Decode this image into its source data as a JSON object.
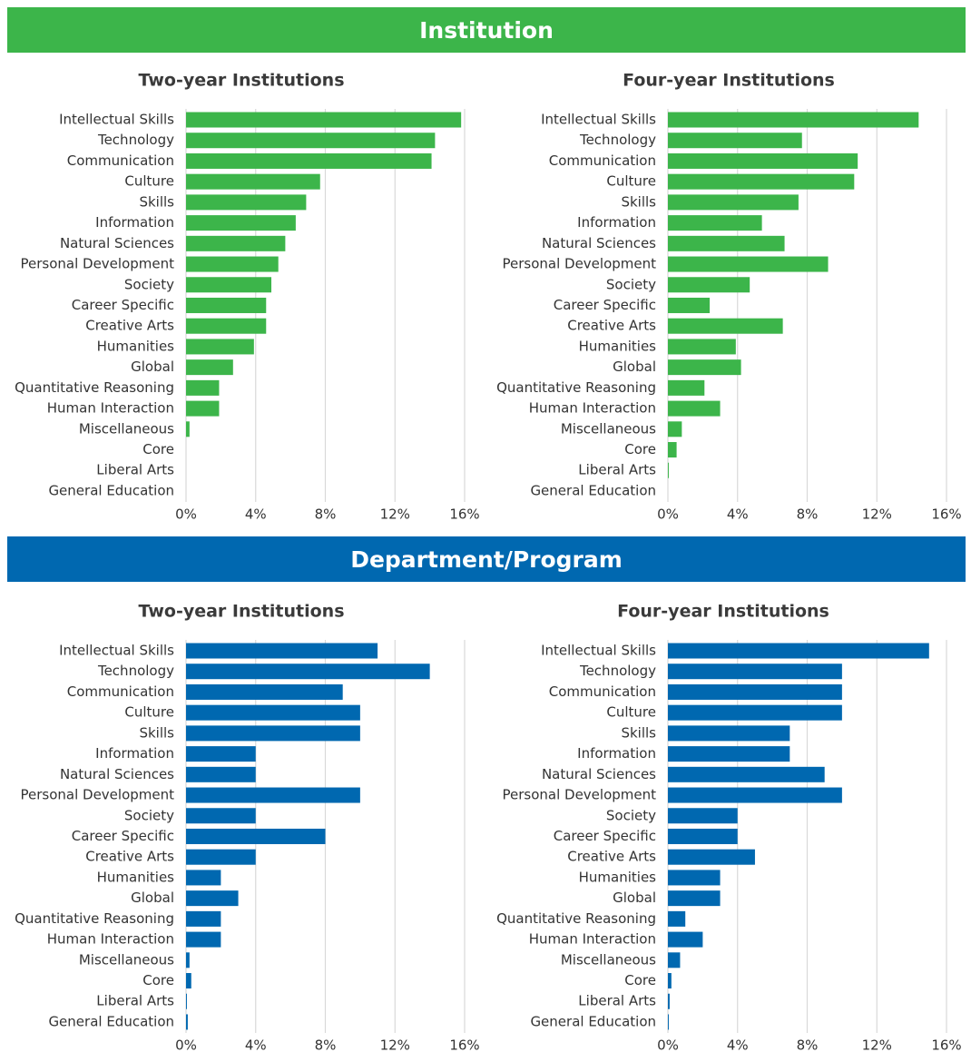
{
  "sections": [
    {
      "title": "Institution",
      "color": "#3cb54a"
    },
    {
      "title": "Department/Program",
      "color": "#0068b0"
    }
  ],
  "chart_data": [
    {
      "type": "bar",
      "orientation": "horizontal",
      "title": "Two-year Institutions",
      "color": "#3cb54a",
      "grid": true,
      "categories": [
        "Intellectual Skills",
        "Technology",
        "Communication",
        "Culture",
        "Skills",
        "Information",
        "Natural Sciences",
        "Personal Development",
        "Society",
        "Career Specific",
        "Creative Arts",
        "Humanities",
        "Global",
        "Quantitative Reasoning",
        "Human Interaction",
        "Miscellaneous",
        "Core",
        "Liberal Arts",
        "General Education"
      ],
      "values": [
        15.8,
        14.3,
        14.1,
        7.7,
        6.9,
        6.3,
        5.7,
        5.3,
        4.9,
        4.6,
        4.6,
        3.9,
        2.7,
        1.9,
        1.9,
        0.2,
        0,
        0,
        0
      ],
      "xlim": [
        0,
        16
      ],
      "xticks": [
        {
          "value": 0,
          "label": "0%"
        },
        {
          "value": 4,
          "label": "4%"
        },
        {
          "value": 8,
          "label": "8%"
        },
        {
          "value": 12,
          "label": "12%"
        },
        {
          "value": 16,
          "label": "16%"
        }
      ]
    },
    {
      "type": "bar",
      "orientation": "horizontal",
      "title": "Four-year Institutions",
      "color": "#3cb54a",
      "grid": true,
      "categories": [
        "Intellectual Skills",
        "Technology",
        "Communication",
        "Culture",
        "Skills",
        "Information",
        "Natural Sciences",
        "Personal Development",
        "Society",
        "Career Specific",
        "Creative Arts",
        "Humanities",
        "Global",
        "Quantitative Reasoning",
        "Human Interaction",
        "Miscellaneous",
        "Core",
        "Liberal Arts",
        "General Education"
      ],
      "values": [
        14.4,
        7.7,
        10.9,
        10.7,
        7.5,
        5.4,
        6.7,
        9.2,
        4.7,
        2.4,
        6.6,
        3.9,
        4.2,
        2.1,
        3.0,
        0.8,
        0.5,
        0.05,
        0
      ],
      "xlim": [
        0,
        16
      ],
      "xticks": [
        {
          "value": 0,
          "label": "0%"
        },
        {
          "value": 4,
          "label": "4%"
        },
        {
          "value": 8,
          "label": "8%"
        },
        {
          "value": 12,
          "label": "12%"
        },
        {
          "value": 16,
          "label": "16%"
        }
      ]
    },
    {
      "type": "bar",
      "orientation": "horizontal",
      "title": "Two-year Institutions",
      "color": "#0068b0",
      "grid": true,
      "categories": [
        "Intellectual Skills",
        "Technology",
        "Communication",
        "Culture",
        "Skills",
        "Information",
        "Natural Sciences",
        "Personal Development",
        "Society",
        "Career Specific",
        "Creative Arts",
        "Humanities",
        "Global",
        "Quantitative Reasoning",
        "Human Interaction",
        "Miscellaneous",
        "Core",
        "Liberal Arts",
        "General Education"
      ],
      "values": [
        11,
        14,
        9,
        10,
        10,
        4,
        4,
        10,
        4,
        8,
        4,
        2,
        3,
        2,
        2,
        0.2,
        0.3,
        0.05,
        0.1
      ],
      "xlim": [
        0,
        16
      ],
      "xticks": [
        {
          "value": 0,
          "label": "0%"
        },
        {
          "value": 4,
          "label": "4%"
        },
        {
          "value": 8,
          "label": "8%"
        },
        {
          "value": 12,
          "label": "12%"
        },
        {
          "value": 16,
          "label": "16%"
        }
      ]
    },
    {
      "type": "bar",
      "orientation": "horizontal",
      "title": "Four-year Institutions",
      "color": "#0068b0",
      "grid": true,
      "categories": [
        "Intellectual Skills",
        "Technology",
        "Communication",
        "Culture",
        "Skills",
        "Information",
        "Natural Sciences",
        "Personal Development",
        "Society",
        "Career Specific",
        "Creative Arts",
        "Humanities",
        "Global",
        "Quantitative Reasoning",
        "Human Interaction",
        "Miscellaneous",
        "Core",
        "Liberal Arts",
        "General Education"
      ],
      "values": [
        15,
        10,
        10,
        10,
        7,
        7,
        9,
        10,
        4,
        4,
        5,
        3,
        3,
        1,
        2,
        0.7,
        0.2,
        0.1,
        0.05
      ],
      "xlim": [
        0,
        16
      ],
      "xticks": [
        {
          "value": 0,
          "label": "0%"
        },
        {
          "value": 4,
          "label": "4%"
        },
        {
          "value": 8,
          "label": "8%"
        },
        {
          "value": 12,
          "label": "12%"
        },
        {
          "value": 16,
          "label": "16%"
        }
      ]
    }
  ]
}
